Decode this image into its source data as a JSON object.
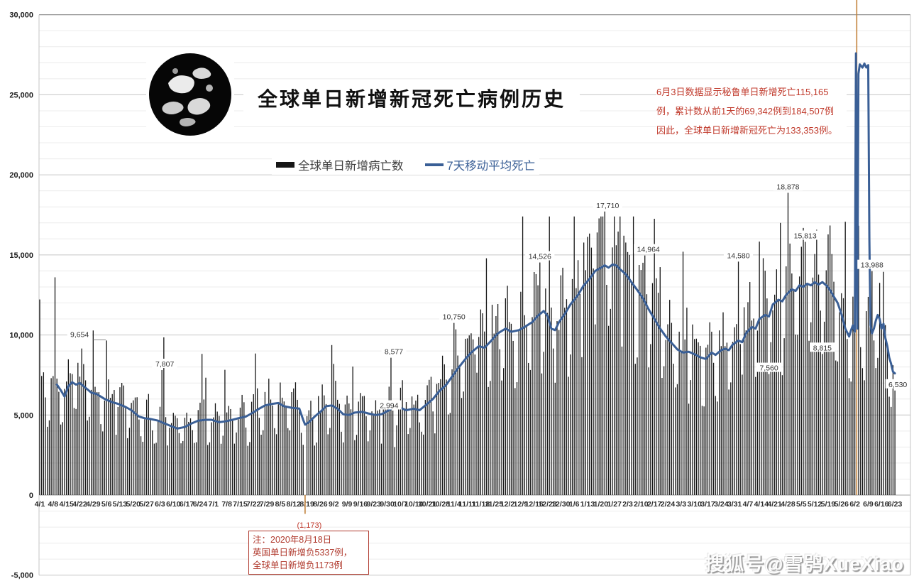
{
  "title": "全球单日新增新冠死亡病例历史",
  "legend": {
    "bars_label": "全球单日新增病亡数",
    "ma_label": "7天移动平均死亡"
  },
  "annotation_peru": {
    "lines": [
      "6月3日数据显示秘鲁单日新增死亡115,165",
      "例，累计数从前1天的69,342例到184,507例",
      "因此，全球单日新增新冠死亡为133,353例。"
    ]
  },
  "note_box": {
    "lines": [
      "注：2020年8月18日",
      "英国单日新增负5337例，",
      "全球单日新增负1173例"
    ]
  },
  "watermark": "搜狐号@雪鸮XueXiao",
  "colors": {
    "bar": "#161616",
    "ma_line": "#3a5f96",
    "special_bar": "#c2823b",
    "annotation_red": "#c0392b",
    "grid_minor": "#ececec",
    "grid_major": "#c6c6c6",
    "grid_top": "#7c7c7c",
    "axis_zero": "#a3a3a3",
    "label_text": "#333333"
  },
  "chart_data": {
    "type": "bar",
    "title": "全球单日新增新冠死亡病例历史",
    "xlabel": "",
    "ylabel": "",
    "x_start": "4/1 (2020)",
    "x_end": "6/23 (2021)",
    "num_days": 449,
    "ylim": [
      -5000,
      30000
    ],
    "y_minor_step": 1000,
    "y_ticks": [
      {
        "label": "30,000",
        "value": 30000
      },
      {
        "label": "25,000",
        "value": 25000
      },
      {
        "label": "20,000",
        "value": 20000
      },
      {
        "label": "15,000",
        "value": 15000
      },
      {
        "label": "10,000",
        "value": 10000
      },
      {
        "label": "5,000",
        "value": 5000
      },
      {
        "label": "0",
        "value": 0
      },
      {
        "label": "-5,000",
        "value": -5000
      }
    ],
    "xtick_step_days": 7,
    "xtick_labels": [
      "4/1",
      "4/8",
      "4/15",
      "4/22",
      "4/29",
      "5/6",
      "5/13",
      "5/20",
      "5/27",
      "6/3",
      "6/10",
      "6/17",
      "6/24",
      "7/1",
      "7/8",
      "7/15",
      "7/22",
      "7/29",
      "8/5",
      "8/12",
      "8/19",
      "8/26",
      "9/2",
      "9/9",
      "9/16",
      "9/23",
      "9/30",
      "10/7",
      "10/14",
      "10/21",
      "10/28",
      "11/4",
      "11/11",
      "11/18",
      "11/25",
      "12/2",
      "12/9",
      "12/16",
      "12/23",
      "12/30",
      "1/6",
      "1/13",
      "1/20",
      "1/27",
      "2/3",
      "2/10",
      "2/17",
      "2/24",
      "3/3",
      "3/10",
      "3/17",
      "3/24",
      "3/31",
      "4/7",
      "4/14",
      "4/21",
      "4/28",
      "5/5",
      "5/12",
      "5/19",
      "5/26",
      "6/2",
      "6/9",
      "6/16",
      "6/23"
    ],
    "series_names": [
      "全球单日新增病亡数",
      "7天移动平均死亡"
    ],
    "ma_keypoints": [
      [
        9,
        6900
      ],
      [
        11,
        6550
      ],
      [
        13,
        6150
      ],
      [
        15,
        6800
      ],
      [
        17,
        7050
      ],
      [
        19,
        6900
      ],
      [
        21,
        7000
      ],
      [
        24,
        6700
      ],
      [
        27,
        6400
      ],
      [
        30,
        6300
      ],
      [
        34,
        6000
      ],
      [
        38,
        5800
      ],
      [
        41,
        5700
      ],
      [
        45,
        5500
      ],
      [
        48,
        5300
      ],
      [
        52,
        4900
      ],
      [
        55,
        4800
      ],
      [
        58,
        4750
      ],
      [
        62,
        4650
      ],
      [
        66,
        4450
      ],
      [
        69,
        4300
      ],
      [
        72,
        4150
      ],
      [
        76,
        4250
      ],
      [
        80,
        4500
      ],
      [
        83,
        4650
      ],
      [
        87,
        4700
      ],
      [
        90,
        4700
      ],
      [
        94,
        4550
      ],
      [
        97,
        4600
      ],
      [
        101,
        4700
      ],
      [
        104,
        4800
      ],
      [
        108,
        4900
      ],
      [
        111,
        5100
      ],
      [
        115,
        5400
      ],
      [
        118,
        5600
      ],
      [
        122,
        5700
      ],
      [
        125,
        5750
      ],
      [
        128,
        5550
      ],
      [
        132,
        5450
      ],
      [
        136,
        5400
      ],
      [
        138,
        4700
      ],
      [
        139,
        4400
      ],
      [
        141,
        4550
      ],
      [
        144,
        4900
      ],
      [
        147,
        5200
      ],
      [
        150,
        5550
      ],
      [
        153,
        5600
      ],
      [
        156,
        5400
      ],
      [
        159,
        5050
      ],
      [
        162,
        5000
      ],
      [
        165,
        5150
      ],
      [
        169,
        5200
      ],
      [
        172,
        5100
      ],
      [
        176,
        5000
      ],
      [
        179,
        5050
      ],
      [
        183,
        5300
      ],
      [
        186,
        5550
      ],
      [
        189,
        5450
      ],
      [
        192,
        5300
      ],
      [
        196,
        5400
      ],
      [
        199,
        5300
      ],
      [
        203,
        5700
      ],
      [
        206,
        6000
      ],
      [
        209,
        6450
      ],
      [
        213,
        6900
      ],
      [
        216,
        7400
      ],
      [
        219,
        7900
      ],
      [
        223,
        8500
      ],
      [
        226,
        8900
      ],
      [
        230,
        9300
      ],
      [
        233,
        9200
      ],
      [
        237,
        9700
      ],
      [
        240,
        10100
      ],
      [
        244,
        10400
      ],
      [
        247,
        10200
      ],
      [
        251,
        10300
      ],
      [
        254,
        10500
      ],
      [
        258,
        10800
      ],
      [
        261,
        11200
      ],
      [
        264,
        11500
      ],
      [
        266,
        11200
      ],
      [
        268,
        10400
      ],
      [
        270,
        10300
      ],
      [
        272,
        10800
      ],
      [
        275,
        11300
      ],
      [
        278,
        11900
      ],
      [
        282,
        12500
      ],
      [
        285,
        13100
      ],
      [
        288,
        13500
      ],
      [
        291,
        14000
      ],
      [
        294,
        14200
      ],
      [
        296,
        14350
      ],
      [
        298,
        14200
      ],
      [
        300,
        14400
      ],
      [
        302,
        14350
      ],
      [
        304,
        14100
      ],
      [
        307,
        13800
      ],
      [
        310,
        13300
      ],
      [
        313,
        12800
      ],
      [
        316,
        12300
      ],
      [
        319,
        11600
      ],
      [
        322,
        11000
      ],
      [
        325,
        10400
      ],
      [
        328,
        9900
      ],
      [
        331,
        9500
      ],
      [
        334,
        9100
      ],
      [
        337,
        8900
      ],
      [
        340,
        8950
      ],
      [
        343,
        8800
      ],
      [
        346,
        8600
      ],
      [
        349,
        8500
      ],
      [
        352,
        8900
      ],
      [
        354,
        8750
      ],
      [
        357,
        9050
      ],
      [
        359,
        9150
      ],
      [
        361,
        9050
      ],
      [
        363,
        9400
      ],
      [
        366,
        9650
      ],
      [
        368,
        9550
      ],
      [
        370,
        10100
      ],
      [
        373,
        10500
      ],
      [
        375,
        10400
      ],
      [
        377,
        11000
      ],
      [
        380,
        11250
      ],
      [
        382,
        11150
      ],
      [
        384,
        11900
      ],
      [
        387,
        12200
      ],
      [
        389,
        12100
      ],
      [
        391,
        12500
      ],
      [
        394,
        12850
      ],
      [
        396,
        12750
      ],
      [
        398,
        13100
      ],
      [
        400,
        13000
      ],
      [
        402,
        13200
      ],
      [
        404,
        13100
      ],
      [
        406,
        13300
      ],
      [
        408,
        13150
      ],
      [
        410,
        13300
      ],
      [
        412,
        13100
      ],
      [
        414,
        12800
      ],
      [
        416,
        12400
      ],
      [
        418,
        12000
      ],
      [
        420,
        11300
      ],
      [
        422,
        10400
      ],
      [
        424,
        9900
      ],
      [
        425,
        10300
      ],
      [
        426,
        10600
      ],
      [
        427,
        10200
      ],
      [
        427.6,
        27588
      ],
      [
        428.3,
        10400
      ],
      [
        428.9,
        26300
      ],
      [
        429.6,
        26900
      ],
      [
        431,
        26700
      ],
      [
        432,
        26950
      ],
      [
        433,
        26700
      ],
      [
        434,
        26850
      ],
      [
        434.6,
        16000
      ],
      [
        435.2,
        10600
      ],
      [
        436,
        10100
      ],
      [
        437,
        10400
      ],
      [
        438,
        10900
      ],
      [
        439,
        11250
      ],
      [
        440,
        11000
      ],
      [
        441,
        10400
      ],
      [
        442,
        10700
      ],
      [
        443,
        9800
      ],
      [
        444,
        9300
      ],
      [
        445,
        8600
      ],
      [
        446,
        8200
      ],
      [
        447,
        7700
      ],
      [
        448,
        7600
      ]
    ],
    "labeled_bars": [
      {
        "day": 35,
        "value": 9654,
        "label": "9,654",
        "dx": -38,
        "leader": true
      },
      {
        "day": 64,
        "value": 7807,
        "label": "7,807",
        "dx": 4
      },
      {
        "day": 184,
        "value": 8577,
        "label": "8,577",
        "dx": 4
      },
      {
        "day": 186,
        "value": 2994,
        "label": "2,994",
        "dx": -8,
        "dy": -50
      },
      {
        "day": 217,
        "value": 10750,
        "label": "10,750"
      },
      {
        "day": 262,
        "value": 14526,
        "label": "14,526"
      },
      {
        "day": 296,
        "value": 17710,
        "label": "17,710",
        "dx": 4
      },
      {
        "day": 317,
        "value": 14964,
        "label": "14,964",
        "dx": 5
      },
      {
        "day": 366,
        "value": 14580,
        "label": "14,580"
      },
      {
        "day": 382,
        "value": 7560,
        "label": "7,560"
      },
      {
        "day": 392,
        "value": 18878,
        "label": "18,878"
      },
      {
        "day": 401,
        "value": 15813,
        "label": "15,813"
      },
      {
        "day": 410,
        "value": 8815,
        "label": "8,815"
      },
      {
        "day": 436,
        "value": 13988,
        "label": "13,988"
      },
      {
        "day": 448,
        "value": 6530,
        "label": "6,530",
        "dx": 4
      }
    ],
    "bar_overrides": [
      [
        8,
        13600
      ],
      [
        28,
        10280
      ],
      [
        65,
        9850
      ],
      [
        260,
        13800
      ],
      [
        292,
        16400
      ],
      [
        306,
        16200
      ],
      [
        388,
        17000
      ]
    ],
    "special_bars": [
      {
        "day": 428,
        "value": 133353,
        "label": "",
        "clipped_at_top": true
      },
      {
        "day": 139,
        "value": -1173,
        "label": "(1,173)"
      }
    ],
    "bar_render_model": {
      "weekday_factors": [
        1.1,
        1.16,
        1.1,
        0.95,
        0.68,
        0.72,
        1.06
      ],
      "jitter_base": 0.9,
      "jitter_amp": 0.26,
      "spike_threshold": 0.94,
      "spike_gain": 1.45,
      "bar_cap": 17400,
      "spike_window_base": 10400
    }
  }
}
